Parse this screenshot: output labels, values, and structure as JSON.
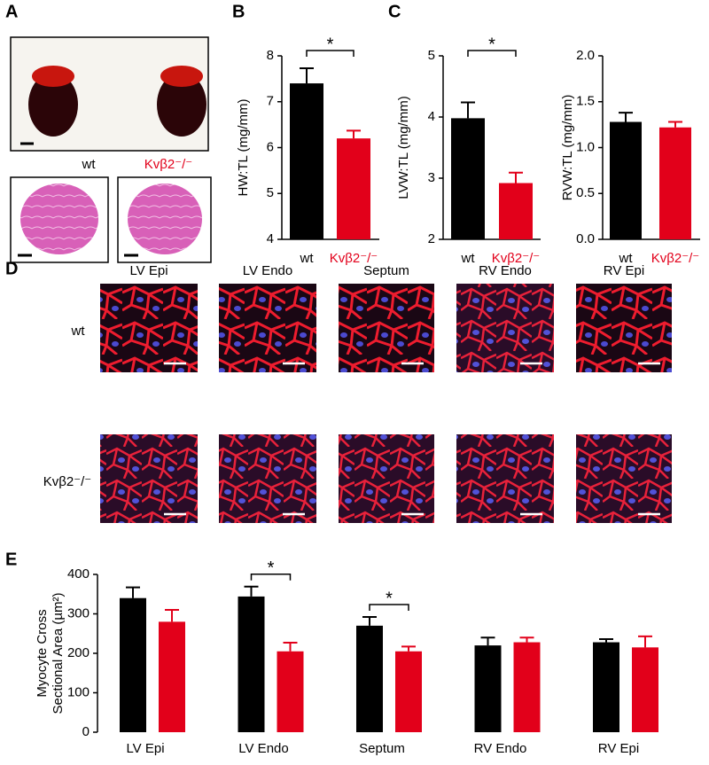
{
  "panel_labels": [
    "A",
    "B",
    "C",
    "D",
    "E"
  ],
  "panel_a": {
    "labels": [
      "wt",
      "Kvβ2⁻/⁻"
    ]
  },
  "panel_d": {
    "columns": [
      "LV Epi",
      "LV Endo",
      "Septum",
      "RV Endo",
      "RV Epi"
    ],
    "rows": [
      "wt",
      "Kvβ2⁻/⁻"
    ]
  },
  "chart_data": [
    {
      "type": "bar",
      "ylabel": "HW:TL (mg/mm)",
      "categories": [
        "wt",
        "Kvβ2⁻/⁻"
      ],
      "values": [
        7.4,
        6.2
      ],
      "errors": [
        0.33,
        0.17
      ],
      "colors": [
        "#000000",
        "#e2001a"
      ],
      "ylim": [
        4,
        8
      ],
      "yticks": [
        4,
        5,
        6,
        7,
        8
      ],
      "annotations": [
        {
          "text": "*"
        }
      ]
    },
    {
      "type": "bar",
      "ylabel": "LVW:TL (mg/mm)",
      "categories": [
        "wt",
        "Kvβ2⁻/⁻"
      ],
      "values": [
        3.98,
        2.92
      ],
      "errors": [
        0.26,
        0.17
      ],
      "colors": [
        "#000000",
        "#e2001a"
      ],
      "ylim": [
        2,
        5
      ],
      "yticks": [
        2,
        3,
        4,
        5
      ],
      "annotations": [
        {
          "text": "*"
        }
      ]
    },
    {
      "type": "bar",
      "ylabel": "RVW:TL (mg/mm)",
      "categories": [
        "wt",
        "Kvβ2⁻/⁻"
      ],
      "values": [
        1.28,
        1.22
      ],
      "errors": [
        0.1,
        0.06
      ],
      "colors": [
        "#000000",
        "#e2001a"
      ],
      "ylim": [
        0,
        2
      ],
      "yticks": [
        {
          "value": 0,
          "label": "0.0"
        },
        0.5,
        {
          "value": 1,
          "label": "1.0"
        },
        1.5,
        {
          "value": 2,
          "label": "2.0"
        }
      ]
    },
    {
      "type": "grouped-bar",
      "ylabel": [
        "Myocyte Cross",
        "Sectional Area (µm²)"
      ],
      "categories": [
        "LV Epi",
        "LV Endo",
        "Septum",
        "RV Endo",
        "RV Epi"
      ],
      "series": [
        {
          "color": "#000000",
          "values": [
            340,
            344,
            270,
            220,
            228
          ],
          "errors": [
            27,
            25,
            22,
            20,
            8
          ]
        },
        {
          "color": "#e2001a",
          "values": [
            280,
            205,
            205,
            228,
            215
          ],
          "errors": [
            30,
            22,
            12,
            12,
            28
          ]
        }
      ],
      "ylim": [
        0,
        400
      ],
      "yticks": [
        0,
        100,
        200,
        300,
        400
      ],
      "annotations": [
        {
          "text": "*",
          "category": 1
        },
        {
          "text": "*",
          "category": 2
        }
      ]
    }
  ]
}
